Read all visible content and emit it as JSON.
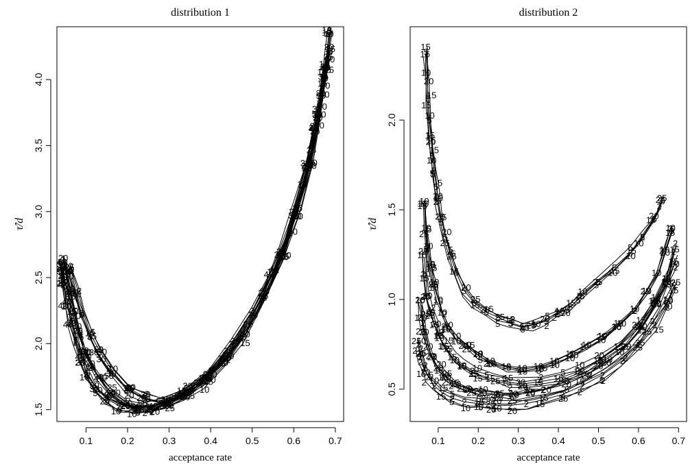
{
  "chart_data": [
    {
      "type": "line",
      "title": "distribution 1",
      "xlabel": "acceptance rate",
      "ylabel": "τ̂/d",
      "xlim": [
        0.03,
        0.72
      ],
      "ylim": [
        1.41,
        4.4
      ],
      "xticks": [
        0.1,
        0.2,
        0.3,
        0.4,
        0.5,
        0.6,
        0.7
      ],
      "yticks": [
        1.5,
        2.0,
        2.5,
        3.0,
        3.5,
        4.0
      ],
      "grid": false,
      "point_labels": [
        "2",
        "5",
        "10",
        "15",
        "20",
        "25",
        "30",
        "40",
        "50"
      ],
      "series": [
        {
          "label": "5",
          "x": [
            0.06,
            0.075,
            0.09,
            0.11,
            0.13,
            0.16,
            0.2,
            0.24,
            0.28,
            0.33,
            0.38,
            0.43,
            0.48,
            0.53,
            0.57,
            0.61,
            0.64,
            0.66,
            0.675,
            0.685
          ],
          "y": [
            2.55,
            2.38,
            2.22,
            2.05,
            1.92,
            1.78,
            1.65,
            1.58,
            1.55,
            1.6,
            1.7,
            1.85,
            2.05,
            2.35,
            2.65,
            3.0,
            3.35,
            3.7,
            4.05,
            4.35
          ]
        },
        {
          "label": "20",
          "x": [
            0.045,
            0.05,
            0.06,
            0.07,
            0.08,
            0.095,
            0.11,
            0.13,
            0.16,
            0.2,
            0.24,
            0.29,
            0.34,
            0.39,
            0.44,
            0.49,
            0.53,
            0.57,
            0.6,
            0.63,
            0.65,
            0.665,
            0.675,
            0.685
          ],
          "y": [
            2.65,
            2.55,
            2.4,
            2.25,
            2.1,
            1.95,
            1.85,
            1.75,
            1.63,
            1.55,
            1.52,
            1.55,
            1.63,
            1.75,
            1.92,
            2.15,
            2.4,
            2.7,
            3.0,
            3.35,
            3.65,
            3.9,
            4.1,
            4.25
          ]
        },
        {
          "label": "2",
          "x": [
            0.04,
            0.045,
            0.055,
            0.065,
            0.075,
            0.09,
            0.105,
            0.125,
            0.15,
            0.18,
            0.22,
            0.26,
            0.3,
            0.35,
            0.4,
            0.45,
            0.5,
            0.55,
            0.59,
            0.62,
            0.645,
            0.66,
            0.672,
            0.68
          ],
          "y": [
            2.6,
            2.48,
            2.32,
            2.16,
            2.02,
            1.88,
            1.76,
            1.66,
            1.58,
            1.53,
            1.51,
            1.52,
            1.57,
            1.66,
            1.8,
            2.0,
            2.25,
            2.55,
            2.88,
            3.2,
            3.5,
            3.78,
            4.0,
            4.15
          ]
        }
      ]
    },
    {
      "type": "line",
      "title": "distribution 2",
      "xlabel": "acceptance rate",
      "ylabel": "τ̂/d",
      "xlim": [
        0.03,
        0.72
      ],
      "ylim": [
        0.32,
        2.52
      ],
      "xticks": [
        0.1,
        0.2,
        0.3,
        0.4,
        0.5,
        0.6,
        0.7
      ],
      "yticks": [
        0.5,
        1.0,
        1.5,
        2.0
      ],
      "grid": false,
      "point_labels": [
        "2",
        "5",
        "10",
        "15",
        "20",
        "25"
      ],
      "series": [
        {
          "label": "5",
          "x": [
            0.07,
            0.072,
            0.075,
            0.078,
            0.082,
            0.086,
            0.09,
            0.095,
            0.1,
            0.108,
            0.118,
            0.13,
            0.145,
            0.165,
            0.19,
            0.22,
            0.25,
            0.28,
            0.31,
            0.34,
            0.37,
            0.4,
            0.43,
            0.46,
            0.5,
            0.54,
            0.58,
            0.61,
            0.64,
            0.66
          ],
          "y": [
            2.38,
            2.25,
            2.12,
            2.0,
            1.9,
            1.8,
            1.72,
            1.63,
            1.55,
            1.45,
            1.35,
            1.25,
            1.15,
            1.05,
            0.98,
            0.93,
            0.9,
            0.87,
            0.85,
            0.86,
            0.88,
            0.92,
            0.96,
            1.02,
            1.1,
            1.18,
            1.26,
            1.35,
            1.45,
            1.55
          ]
        },
        {
          "label": "10",
          "x": [
            0.065,
            0.07,
            0.075,
            0.08,
            0.09,
            0.1,
            0.11,
            0.125,
            0.145,
            0.17,
            0.2,
            0.23,
            0.27,
            0.31,
            0.35,
            0.39,
            0.43,
            0.47,
            0.51,
            0.55,
            0.59,
            0.62,
            0.645,
            0.665,
            0.68
          ],
          "y": [
            1.55,
            1.4,
            1.3,
            1.2,
            1.1,
            1.0,
            0.93,
            0.86,
            0.8,
            0.75,
            0.7,
            0.66,
            0.63,
            0.62,
            0.63,
            0.66,
            0.7,
            0.75,
            0.8,
            0.87,
            0.95,
            1.05,
            1.15,
            1.28,
            1.4
          ]
        },
        {
          "label": "15",
          "x": [
            0.06,
            0.065,
            0.07,
            0.08,
            0.09,
            0.1,
            0.115,
            0.135,
            0.16,
            0.19,
            0.23,
            0.27,
            0.31,
            0.35,
            0.4,
            0.45,
            0.5,
            0.55,
            0.6,
            0.64,
            0.67,
            0.69
          ],
          "y": [
            1.25,
            1.12,
            1.02,
            0.93,
            0.86,
            0.8,
            0.74,
            0.68,
            0.63,
            0.59,
            0.56,
            0.54,
            0.53,
            0.54,
            0.56,
            0.6,
            0.66,
            0.74,
            0.85,
            0.98,
            1.12,
            1.28
          ]
        },
        {
          "label": "20",
          "x": [
            0.055,
            0.06,
            0.065,
            0.075,
            0.085,
            0.1,
            0.12,
            0.145,
            0.175,
            0.21,
            0.25,
            0.29,
            0.33,
            0.37,
            0.42,
            0.47,
            0.52,
            0.57,
            0.61,
            0.645,
            0.67,
            0.69
          ],
          "y": [
            1.0,
            0.9,
            0.82,
            0.74,
            0.68,
            0.62,
            0.57,
            0.53,
            0.5,
            0.48,
            0.47,
            0.47,
            0.48,
            0.5,
            0.53,
            0.58,
            0.65,
            0.74,
            0.85,
            0.98,
            1.1,
            1.2
          ]
        },
        {
          "label": "2",
          "x": [
            0.05,
            0.055,
            0.065,
            0.075,
            0.09,
            0.11,
            0.135,
            0.165,
            0.2,
            0.24,
            0.28,
            0.32,
            0.36,
            0.41,
            0.46,
            0.51,
            0.56,
            0.6,
            0.64,
            0.67,
            0.69
          ],
          "y": [
            0.75,
            0.68,
            0.62,
            0.57,
            0.52,
            0.48,
            0.45,
            0.43,
            0.42,
            0.41,
            0.41,
            0.42,
            0.44,
            0.47,
            0.52,
            0.58,
            0.66,
            0.75,
            0.86,
            0.98,
            1.08
          ]
        }
      ]
    }
  ]
}
